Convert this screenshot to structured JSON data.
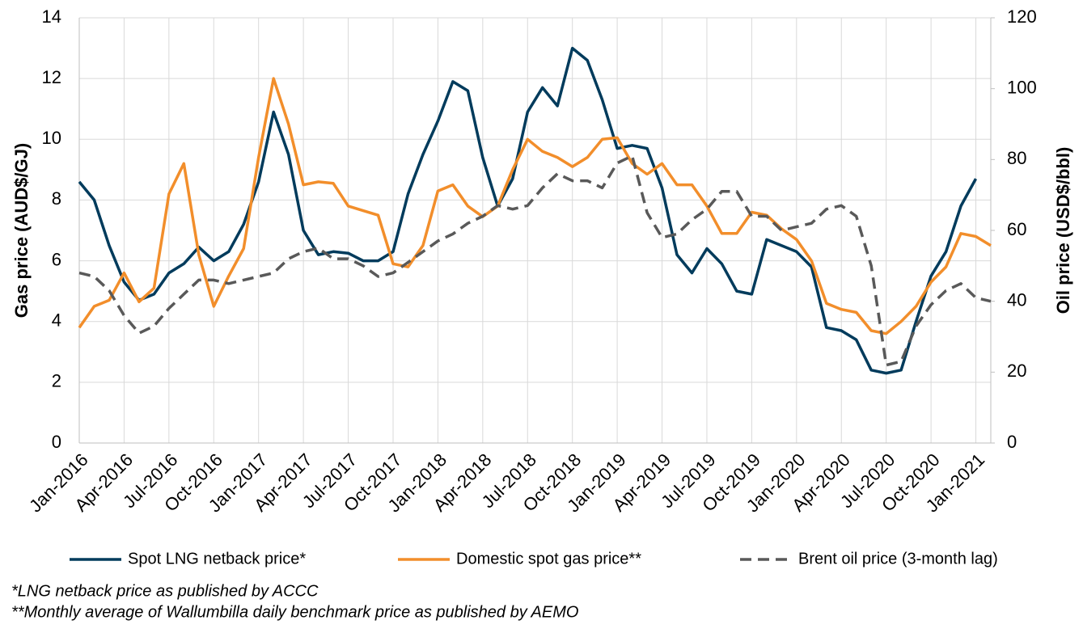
{
  "chart_data": {
    "type": "line",
    "categories": [
      "Jan-2016",
      null,
      null,
      "Apr-2016",
      null,
      null,
      "Jul-2016",
      null,
      null,
      "Oct-2016",
      null,
      null,
      "Jan-2017",
      null,
      null,
      "Apr-2017",
      null,
      null,
      "Jul-2017",
      null,
      null,
      "Oct-2017",
      null,
      null,
      "Jan-2018",
      null,
      null,
      "Apr-2018",
      null,
      null,
      "Jul-2018",
      null,
      null,
      "Oct-2018",
      null,
      null,
      "Jan-2019",
      null,
      null,
      "Apr-2019",
      null,
      null,
      "Jul-2019",
      null,
      null,
      "Oct-2019",
      null,
      null,
      "Jan-2020",
      null,
      null,
      "Apr-2020",
      null,
      null,
      "Jul-2020",
      null,
      null,
      "Oct-2020",
      null,
      null,
      "Jan-2021",
      null
    ],
    "series": [
      {
        "name": "Spot LNG netback price*",
        "color": "#003b5c",
        "dash": false,
        "values": [
          8.6,
          8.0,
          6.5,
          5.3,
          4.7,
          4.9,
          5.6,
          5.9,
          6.45,
          6.0,
          6.3,
          7.2,
          8.6,
          10.9,
          9.5,
          7.0,
          6.2,
          6.3,
          6.25,
          6.0,
          6.0,
          6.3,
          8.2,
          9.5,
          10.6,
          11.9,
          11.6,
          9.4,
          7.8,
          8.7,
          10.9,
          11.7,
          11.1,
          13.0,
          12.6,
          11.3,
          9.7,
          9.8,
          9.7,
          8.4,
          6.2,
          5.6,
          6.4,
          5.9,
          5.0,
          4.9,
          6.7,
          6.5,
          6.3,
          5.8,
          3.8,
          3.7,
          3.4,
          2.4,
          2.3,
          2.4,
          4.0,
          5.5,
          6.3,
          7.8,
          8.7,
          null
        ]
      },
      {
        "name": "Domestic spot gas price**",
        "color": "#f28e2b",
        "dash": false,
        "values": [
          3.8,
          4.5,
          4.7,
          5.6,
          4.65,
          5.1,
          8.2,
          9.2,
          6.2,
          4.5,
          5.5,
          6.4,
          9.4,
          12.0,
          10.5,
          8.5,
          8.6,
          8.55,
          7.8,
          7.65,
          7.5,
          5.9,
          5.8,
          6.5,
          8.3,
          8.5,
          7.8,
          7.45,
          7.8,
          9.0,
          10.0,
          9.6,
          9.4,
          9.1,
          9.4,
          10.0,
          10.05,
          9.2,
          8.85,
          9.2,
          8.5,
          8.5,
          7.8,
          6.9,
          6.9,
          7.6,
          7.5,
          7.05,
          6.7,
          6.0,
          4.6,
          4.4,
          4.3,
          3.7,
          3.6,
          4.0,
          4.5,
          5.3,
          5.8,
          6.9,
          6.8,
          6.5
        ]
      },
      {
        "name": "Brent oil price (3-month lag)",
        "color": "#595959",
        "dash": true,
        "axis": "y2",
        "values": [
          48,
          47,
          43,
          36,
          31,
          33,
          38,
          42,
          46,
          46,
          45,
          46,
          47,
          48,
          52,
          54,
          55,
          52,
          52,
          50,
          47,
          48,
          51,
          54,
          57,
          59,
          62,
          64,
          67,
          66,
          67,
          72,
          76,
          74,
          74,
          72,
          79,
          81,
          65,
          58,
          59,
          63,
          66,
          71,
          71,
          64,
          64,
          60,
          61,
          62,
          66,
          67,
          64,
          50,
          22,
          23,
          33,
          39,
          43,
          45,
          41,
          40
        ]
      }
    ],
    "ylabel": "Gas price (AUD$/GJ)",
    "y2label": "Oil price (USD$/bbl)",
    "ylim": [
      0,
      14
    ],
    "yticks": [
      0,
      2,
      4,
      6,
      8,
      10,
      12,
      14
    ],
    "y2lim": [
      0,
      120
    ],
    "y2ticks": [
      0,
      20,
      40,
      60,
      80,
      100,
      120
    ],
    "grid": true,
    "legend": "bottom",
    "notes": [
      "*LNG netback price as published by ACCC",
      "**Monthly average of Wallumbilla daily benchmark price as published by AEMO"
    ]
  }
}
